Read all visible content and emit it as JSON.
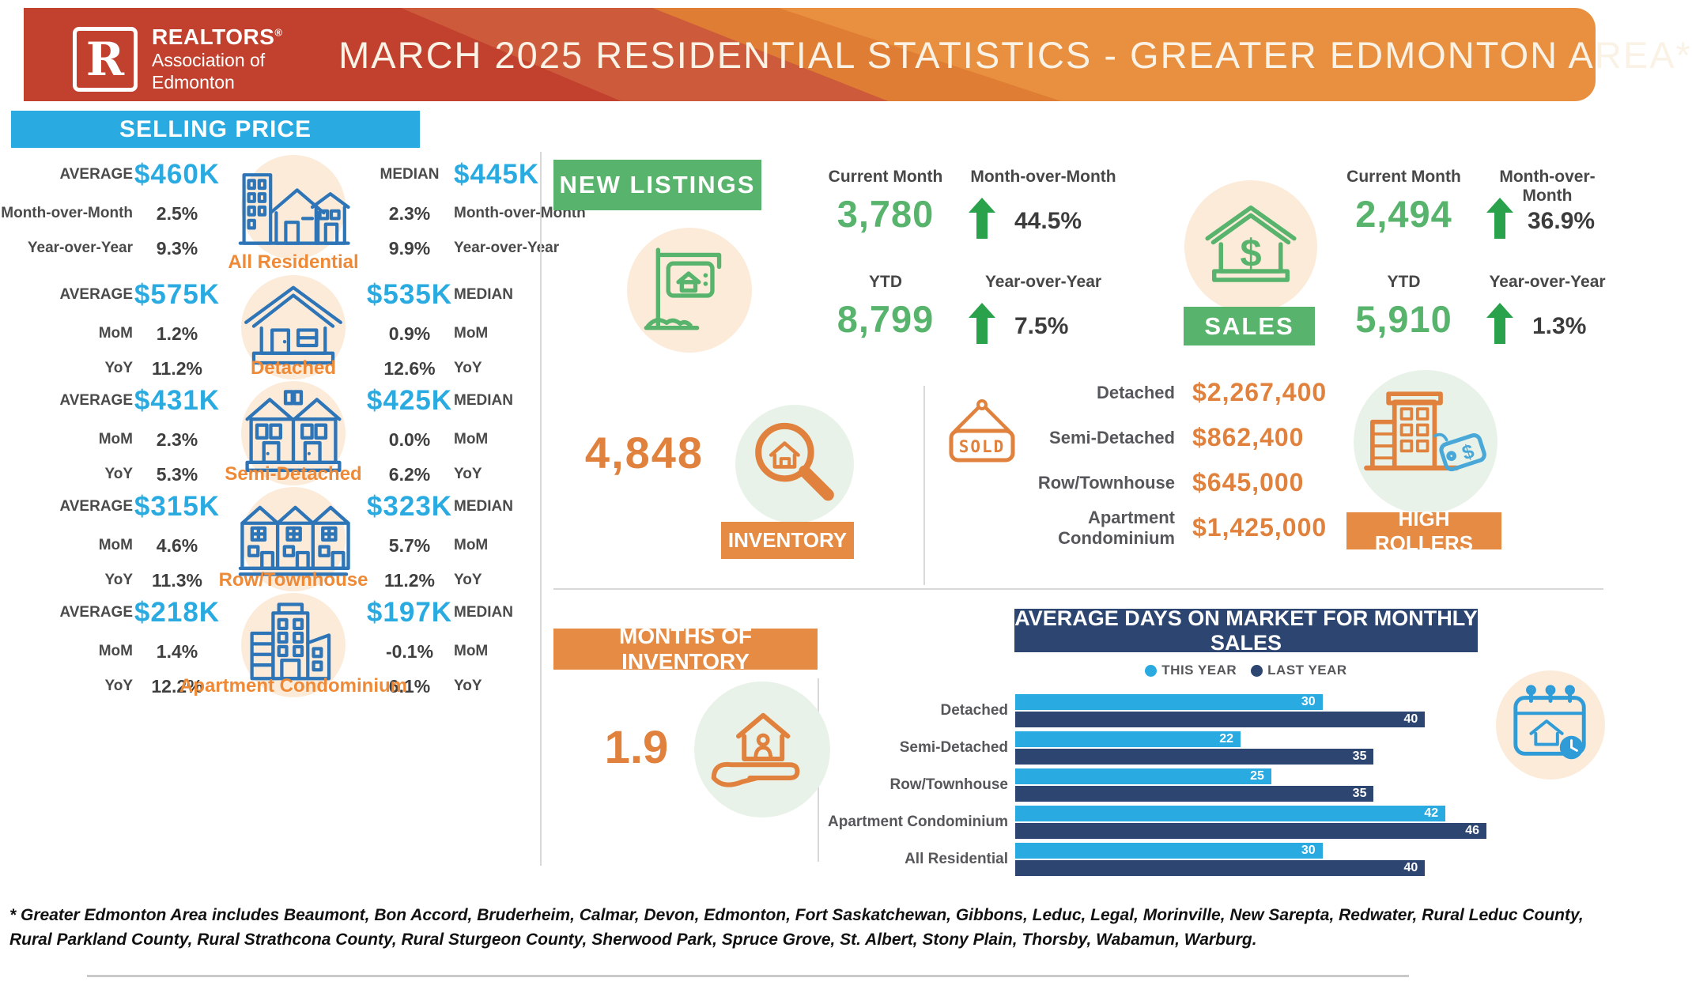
{
  "header": {
    "logo": {
      "letter": "R",
      "line1": "REALTORS",
      "reg": "®",
      "line2": "Association of",
      "line3": "Edmonton"
    },
    "title": "MARCH 2025 RESIDENTIAL STATISTICS - GREATER EDMONTON AREA*"
  },
  "colors": {
    "blue_accent": "#29abe2",
    "green_accent": "#58b46c",
    "arrow_green": "#2aa14b",
    "orange_accent": "#e58b44",
    "orange_value": "#e0823d",
    "navy": "#2d4671",
    "light_blue_bar": "#29aae1",
    "header_red": "#c2412e",
    "header_orange": "#e8903f",
    "caption_orange": "#ee8a37",
    "property_icon_blue": "#2e75b8"
  },
  "selling_price": {
    "title": "SELLING PRICE",
    "rows": [
      {
        "name": "All Residential",
        "icon": "all_residential",
        "right_label_first": true,
        "left": [
          {
            "label": "AVERAGE",
            "value": "$460K"
          },
          {
            "label": "Month-over-Month",
            "value": "2.5%"
          },
          {
            "label": "Year-over-Year",
            "value": "9.3%"
          }
        ],
        "right": [
          {
            "label": "MEDIAN",
            "value": "$445K"
          },
          {
            "label": "Month-over-Month",
            "value": "2.3%"
          },
          {
            "label": "Year-over-Year",
            "value": "9.9%"
          }
        ]
      },
      {
        "name": "Detached",
        "icon": "detached",
        "right_label_first": false,
        "left": [
          {
            "label": "AVERAGE",
            "value": "$575K"
          },
          {
            "label": "MoM",
            "value": "1.2%"
          },
          {
            "label": "YoY",
            "value": "11.2%"
          }
        ],
        "right": [
          {
            "label": "MEDIAN",
            "value": "$535K"
          },
          {
            "label": "MoM",
            "value": "0.9%"
          },
          {
            "label": "YoY",
            "value": "12.6%"
          }
        ]
      },
      {
        "name": "Semi-Detached",
        "icon": "semi_detached",
        "right_label_first": false,
        "left": [
          {
            "label": "AVERAGE",
            "value": "$431K"
          },
          {
            "label": "MoM",
            "value": "2.3%"
          },
          {
            "label": "YoY",
            "value": "5.3%"
          }
        ],
        "right": [
          {
            "label": "MEDIAN",
            "value": "$425K"
          },
          {
            "label": "MoM",
            "value": "0.0%"
          },
          {
            "label": "YoY",
            "value": "6.2%"
          }
        ]
      },
      {
        "name": "Row/Townhouse",
        "icon": "row_townhouse",
        "right_label_first": false,
        "left": [
          {
            "label": "AVERAGE",
            "value": "$315K"
          },
          {
            "label": "MoM",
            "value": "4.6%"
          },
          {
            "label": "YoY",
            "value": "11.3%"
          }
        ],
        "right": [
          {
            "label": "MEDIAN",
            "value": "$323K"
          },
          {
            "label": "MoM",
            "value": "5.7%"
          },
          {
            "label": "YoY",
            "value": "11.2%"
          }
        ]
      },
      {
        "name": "Apartment Condominium",
        "icon": "apartment",
        "right_label_first": false,
        "left": [
          {
            "label": "AVERAGE",
            "value": "$218K"
          },
          {
            "label": "MoM",
            "value": "1.4%"
          },
          {
            "label": "YoY",
            "value": "12.2%"
          }
        ],
        "right": [
          {
            "label": "MEDIAN",
            "value": "$197K"
          },
          {
            "label": "MoM",
            "value": "-0.1%"
          },
          {
            "label": "YoY",
            "value": "6.1%"
          }
        ]
      }
    ]
  },
  "new_listings": {
    "banner": "NEW LISTINGS",
    "current_month_label": "Current Month",
    "current_month_value": "3,780",
    "mom_label": "Month-over-Month",
    "mom_value": "44.5%",
    "ytd_label": "YTD",
    "ytd_value": "8,799",
    "yoy_label": "Year-over-Year",
    "yoy_value": "7.5%"
  },
  "sales": {
    "banner": "SALES",
    "current_month_label": "Current Month",
    "current_month_value": "2,494",
    "mom_label": "Month-over-Month",
    "mom_value": "36.9%",
    "ytd_label": "YTD",
    "ytd_value": "5,910",
    "yoy_label": "Year-over-Year",
    "yoy_value": "1.3%"
  },
  "inventory": {
    "banner": "INVENTORY",
    "value": "4,848"
  },
  "months_of_inventory": {
    "banner": "MONTHS OF INVENTORY",
    "value": "1.9"
  },
  "sold": {
    "sign": "SOLD",
    "rows": [
      {
        "label": "Detached",
        "value": "$2,267,400"
      },
      {
        "label": "Semi-Detached",
        "value": "$862,400"
      },
      {
        "label": "Row/Townhouse",
        "value": "$645,000"
      },
      {
        "label": "Apartment Condominium",
        "value": "$1,425,000"
      }
    ]
  },
  "high_rollers": {
    "banner": "HIGH ROLLERS"
  },
  "chart_data": {
    "type": "bar",
    "title": "AVERAGE DAYS ON MARKET FOR MONTHLY SALES",
    "legend": [
      "THIS YEAR",
      "LAST YEAR"
    ],
    "legend_position": "top-center",
    "orientation": "horizontal",
    "categories": [
      "Detached",
      "Semi-Detached",
      "Row/Townhouse",
      "Apartment Condominium",
      "All Residential"
    ],
    "series": [
      {
        "name": "THIS YEAR",
        "values": [
          30,
          22,
          25,
          42,
          30
        ]
      },
      {
        "name": "LAST YEAR",
        "values": [
          40,
          35,
          35,
          46,
          40
        ]
      }
    ],
    "xlim": [
      0,
      46
    ],
    "ylabel": "",
    "xlabel": "",
    "grid": false,
    "colors": {
      "this_year": "#29aae1",
      "last_year": "#2d4671"
    }
  },
  "footnote": "* Greater Edmonton Area includes Beaumont, Bon Accord, Bruderheim, Calmar, Devon, Edmonton, Fort Saskatchewan, Gibbons, Leduc, Legal, Morinville, New Sarepta, Redwater, Rural Leduc County, Rural Parkland County, Rural Strathcona County, Rural Sturgeon County, Sherwood Park, Spruce Grove, St. Albert, Stony Plain, Thorsby, Wabamun, Warburg."
}
